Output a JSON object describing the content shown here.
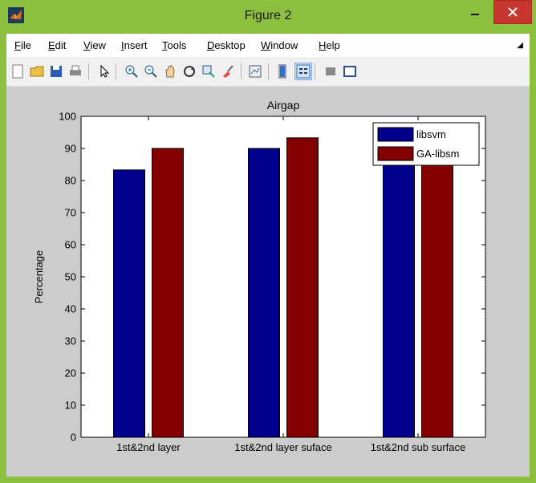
{
  "window": {
    "title": "Figure 2",
    "colors": {
      "titlebar": "#8cbf3f",
      "close": "#c7372f",
      "figure_bg": "#cccccc"
    }
  },
  "menu": [
    {
      "label": "File",
      "u": "F",
      "rest": "ile"
    },
    {
      "label": "Edit",
      "u": "E",
      "rest": "dit"
    },
    {
      "label": "View",
      "u": "V",
      "rest": "iew"
    },
    {
      "label": "Insert",
      "u": "I",
      "rest": "nsert"
    },
    {
      "label": "Tools",
      "u": "T",
      "rest": "ools"
    },
    {
      "label": "Desktop",
      "u": "D",
      "rest": "esktop"
    },
    {
      "label": "Window",
      "u": "W",
      "rest": "indow"
    },
    {
      "label": "Help",
      "u": "H",
      "rest": "elp"
    }
  ],
  "toolbar": {
    "icons": [
      "new-figure-icon",
      "open-file-icon",
      "save-icon",
      "print-icon",
      "pointer-icon",
      "zoom-in-icon",
      "zoom-out-icon",
      "pan-icon",
      "rotate-3d-icon",
      "data-cursor-icon",
      "brush-icon",
      "link-plot-icon",
      "colorbar-icon",
      "legend-icon",
      "hide-plot-tools-icon",
      "show-plot-tools-icon"
    ]
  },
  "chart_data": {
    "type": "bar",
    "title": "Airgap",
    "xlabel": "",
    "ylabel": "Percentage",
    "ylim": [
      0,
      100
    ],
    "yticks": [
      0,
      10,
      20,
      30,
      40,
      50,
      60,
      70,
      80,
      90,
      100
    ],
    "categories": [
      "1st&2nd layer",
      "1st&2nd layer suface",
      "1st&2nd sub surface"
    ],
    "series": [
      {
        "name": "libsvm",
        "color": "#00008c",
        "values": [
          83.3,
          90,
          90
        ]
      },
      {
        "name": "GA-libsm",
        "color": "#820000",
        "values": [
          90,
          93.3,
          90
        ]
      }
    ],
    "legend": "top-right",
    "grid": false
  }
}
